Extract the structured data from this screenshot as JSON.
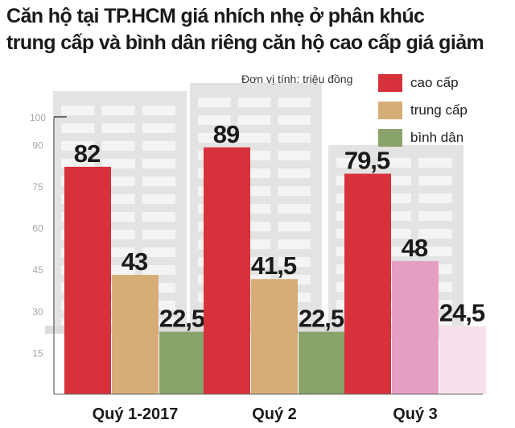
{
  "title_lines": [
    "Căn hộ tại TP.HCM giá nhích nhẹ ở phân khúc",
    "trung cấp và bình dân riêng căn hộ cao cấp giá giảm"
  ],
  "unit_note": "Đơn vị tính: triệu đồng",
  "colors": {
    "cao_cap": "#d7323c",
    "trung_cap": "#d7ad77",
    "binh_dan": "#8aa36b",
    "cao_cap_q3": "#d7323c",
    "trung_cap_q3": "#e59fc3",
    "binh_dan_q3": "#f8e1ec",
    "building": "#e3e3e3",
    "window": "#f4f4f4"
  },
  "chart_data": {
    "type": "bar",
    "title": "Căn hộ tại TP.HCM giá nhích nhẹ ở phân khúc trung cấp và bình dân riêng căn hộ cao cấp giá giảm",
    "categories": [
      "Quý 1-2017",
      "Quý 2",
      "Quý 3"
    ],
    "series": [
      {
        "name": "cao cấp",
        "values": [
          82,
          89,
          79.5
        ],
        "labels": [
          "82",
          "89",
          "79,5"
        ]
      },
      {
        "name": "trung cấp",
        "values": [
          43,
          41.5,
          48
        ],
        "labels": [
          "43",
          "41,5",
          "48"
        ]
      },
      {
        "name": "bình dân",
        "values": [
          22.5,
          22.5,
          24.5
        ],
        "labels": [
          "22,5",
          "22,5",
          "24,5"
        ]
      }
    ],
    "yticks": [
      "100",
      "90",
      "75",
      "60",
      "45",
      "30",
      "15"
    ],
    "ylim": [
      0,
      100
    ],
    "legend_position": "top-right",
    "grid": false
  }
}
